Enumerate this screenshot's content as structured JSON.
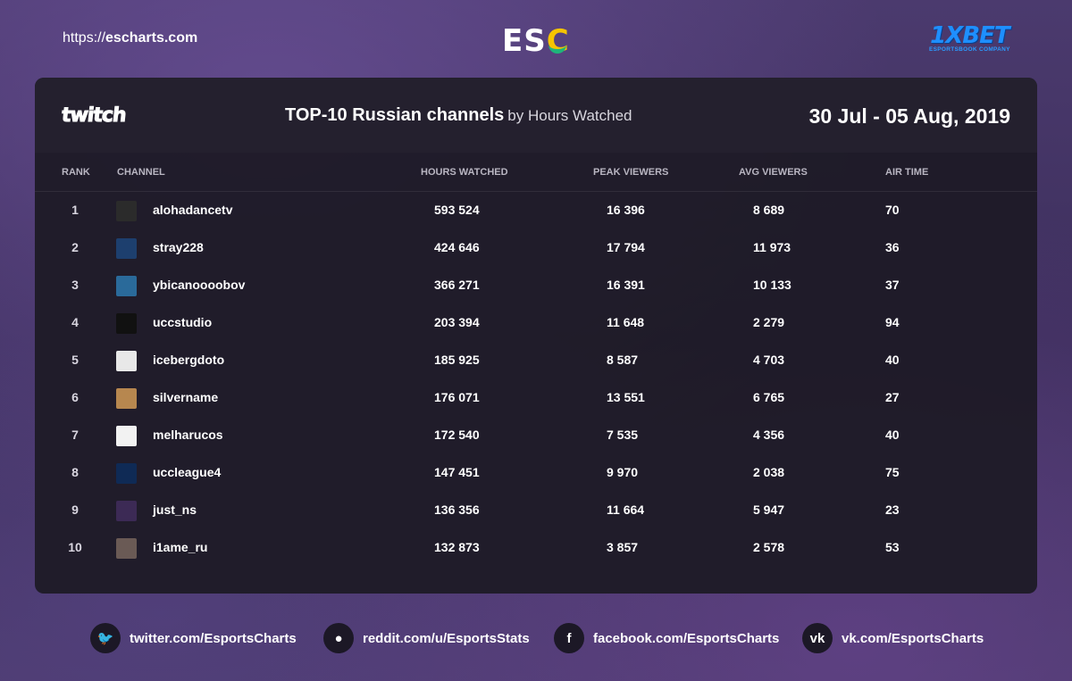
{
  "header": {
    "site_url_prefix": "https://",
    "site_url_domain": "escharts.com",
    "esc_logo_es": "ES",
    "esc_logo_c": "C",
    "sponsor_logo": "1XBET",
    "sponsor_tagline": "ESPORTSBOOK COMPANY"
  },
  "card": {
    "platform_logo": "twitch",
    "title": "TOP-10 Russian channels",
    "subtitle": "by Hours Watched",
    "date_range": "30 Jul - 05 Aug, 2019",
    "columns": {
      "rank": "RANK",
      "channel": "CHANNEL",
      "hours": "HOURS WATCHED",
      "peak": "PEAK VIEWERS",
      "avg": "AVG VIEWERS",
      "air": "AIR TIME"
    }
  },
  "rows": [
    {
      "rank": "1",
      "channel": "alohadancetv",
      "hours": "593 524",
      "peak": "16 396",
      "avg": "8 689",
      "air": "70"
    },
    {
      "rank": "2",
      "channel": "stray228",
      "hours": "424 646",
      "peak": "17 794",
      "avg": "11 973",
      "air": "36"
    },
    {
      "rank": "3",
      "channel": "ybicanoooobov",
      "hours": "366 271",
      "peak": "16 391",
      "avg": "10 133",
      "air": "37"
    },
    {
      "rank": "4",
      "channel": "uccstudio",
      "hours": "203 394",
      "peak": "11 648",
      "avg": "2 279",
      "air": "94"
    },
    {
      "rank": "5",
      "channel": "icebergdoto",
      "hours": "185 925",
      "peak": "8 587",
      "avg": "4 703",
      "air": "40"
    },
    {
      "rank": "6",
      "channel": "silvername",
      "hours": "176 071",
      "peak": "13 551",
      "avg": "6 765",
      "air": "27"
    },
    {
      "rank": "7",
      "channel": "melharucos",
      "hours": "172 540",
      "peak": "7 535",
      "avg": "4 356",
      "air": "40"
    },
    {
      "rank": "8",
      "channel": "uccleague4",
      "hours": "147 451",
      "peak": "9 970",
      "avg": "2 038",
      "air": "75"
    },
    {
      "rank": "9",
      "channel": "just_ns",
      "hours": "136 356",
      "peak": "11 664",
      "avg": "5 947",
      "air": "23"
    },
    {
      "rank": "10",
      "channel": "i1ame_ru",
      "hours": "132 873",
      "peak": "3 857",
      "avg": "2 578",
      "air": "53"
    }
  ],
  "social": [
    {
      "icon": "twitter-icon",
      "glyph": "🐦",
      "text": "twitter.com/EsportsCharts"
    },
    {
      "icon": "reddit-icon",
      "glyph": "●",
      "text": "reddit.com/u/EsportsStats"
    },
    {
      "icon": "facebook-icon",
      "glyph": "f",
      "text": "facebook.com/EsportsCharts"
    },
    {
      "icon": "vk-icon",
      "glyph": "vk",
      "text": "vk.com/EsportsCharts"
    }
  ],
  "colors": {
    "accent_yellow": "#f5c400",
    "accent_green": "#1fb57a",
    "sponsor_blue": "#1e8fff"
  }
}
